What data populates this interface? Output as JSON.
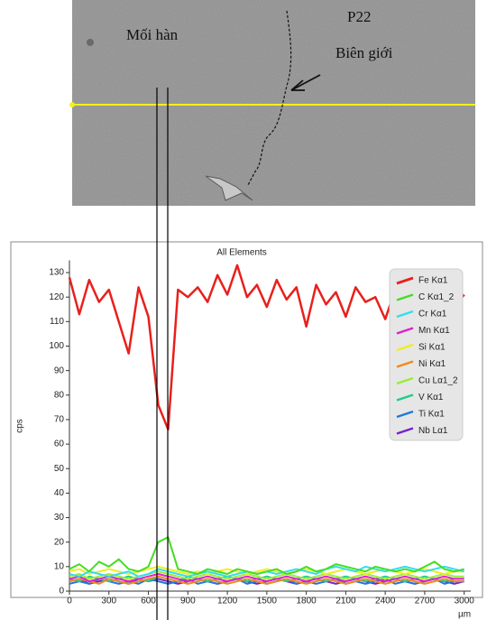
{
  "image_labels": {
    "weld": "Mối hàn",
    "material": "P22",
    "boundary": "Biên giới"
  },
  "chart_data": {
    "type": "line",
    "title": "All Elements",
    "xlabel": "µm",
    "ylabel": "cps",
    "x": [
      0,
      75,
      150,
      225,
      300,
      375,
      450,
      525,
      600,
      675,
      750,
      825,
      900,
      975,
      1050,
      1125,
      1200,
      1275,
      1350,
      1425,
      1500,
      1575,
      1650,
      1725,
      1800,
      1875,
      1950,
      2025,
      2100,
      2175,
      2250,
      2325,
      2400,
      2475,
      2550,
      2625,
      2700,
      2775,
      2850,
      2925,
      3000
    ],
    "xlim": [
      0,
      3050
    ],
    "xticks": [
      0,
      300,
      600,
      900,
      1200,
      1500,
      1800,
      2100,
      2400,
      2700,
      3000
    ],
    "ylim": [
      0,
      135
    ],
    "yticks": [
      0,
      10,
      20,
      30,
      40,
      50,
      60,
      70,
      80,
      90,
      100,
      110,
      120,
      130
    ],
    "legend": "upper right",
    "series": [
      {
        "name": "Fe Kα1",
        "color": "#e8201c",
        "values": [
          128,
          113,
          127,
          118,
          123,
          110,
          97,
          124,
          112,
          76,
          66,
          123,
          120,
          124,
          118,
          129,
          121,
          133,
          120,
          125,
          116,
          127,
          119,
          124,
          108,
          125,
          117,
          122,
          112,
          124,
          118,
          120,
          111,
          123,
          116,
          125,
          117,
          122,
          121,
          116,
          121
        ]
      },
      {
        "name": "C Kα1_2",
        "color": "#44dd22",
        "values": [
          9,
          11,
          8,
          12,
          10,
          13,
          9,
          8,
          10,
          20,
          22,
          9,
          8,
          7,
          9,
          8,
          7,
          9,
          8,
          7,
          8,
          9,
          7,
          8,
          10,
          8,
          9,
          11,
          10,
          9,
          8,
          10,
          9,
          8,
          9,
          8,
          10,
          12,
          9,
          8,
          9
        ]
      },
      {
        "name": "Cr Kα1",
        "color": "#33ddee",
        "values": [
          7,
          6,
          8,
          7,
          6,
          7,
          8,
          6,
          7,
          9,
          8,
          7,
          6,
          7,
          8,
          7,
          6,
          7,
          8,
          7,
          8,
          7,
          8,
          9,
          8,
          7,
          9,
          10,
          9,
          8,
          10,
          9,
          8,
          9,
          10,
          9,
          8,
          9,
          10,
          9,
          8
        ]
      },
      {
        "name": "Mn Kα1",
        "color": "#e020d0",
        "values": [
          5,
          6,
          4,
          5,
          6,
          5,
          4,
          5,
          6,
          7,
          6,
          5,
          4,
          5,
          6,
          5,
          4,
          5,
          6,
          5,
          4,
          5,
          6,
          5,
          4,
          5,
          6,
          5,
          4,
          5,
          6,
          5,
          4,
          5,
          6,
          5,
          4,
          5,
          6,
          5,
          5
        ]
      },
      {
        "name": "Si Kα1",
        "color": "#eeee22",
        "values": [
          8,
          9,
          7,
          8,
          9,
          8,
          7,
          8,
          9,
          10,
          9,
          8,
          7,
          8,
          7,
          8,
          9,
          8,
          7,
          8,
          9,
          8,
          7,
          8,
          9,
          8,
          7,
          8,
          9,
          8,
          7,
          8,
          9,
          8,
          7,
          8,
          9,
          8,
          7,
          8,
          8
        ]
      },
      {
        "name": "Ni Kα1",
        "color": "#f08a1c",
        "values": [
          4,
          5,
          4,
          3,
          5,
          4,
          3,
          4,
          5,
          6,
          5,
          4,
          3,
          4,
          5,
          4,
          3,
          4,
          5,
          4,
          3,
          4,
          5,
          4,
          3,
          4,
          5,
          4,
          3,
          4,
          5,
          4,
          3,
          4,
          5,
          4,
          3,
          4,
          5,
          4,
          4
        ]
      },
      {
        "name": "Cu Lα1_2",
        "color": "#99ee33",
        "values": [
          6,
          7,
          5,
          6,
          7,
          6,
          5,
          6,
          7,
          8,
          7,
          6,
          5,
          6,
          7,
          6,
          5,
          6,
          7,
          6,
          5,
          6,
          7,
          6,
          5,
          6,
          7,
          6,
          5,
          6,
          7,
          6,
          5,
          6,
          7,
          6,
          5,
          6,
          7,
          6,
          6
        ]
      },
      {
        "name": "V Kα1",
        "color": "#22cc88",
        "values": [
          5,
          4,
          6,
          5,
          4,
          5,
          6,
          5,
          4,
          6,
          5,
          4,
          6,
          5,
          4,
          5,
          6,
          5,
          4,
          5,
          6,
          5,
          4,
          5,
          6,
          5,
          4,
          5,
          6,
          5,
          4,
          5,
          6,
          5,
          4,
          5,
          6,
          5,
          4,
          5,
          5
        ]
      },
      {
        "name": "Ti Kα1",
        "color": "#2277dd",
        "values": [
          3,
          4,
          3,
          5,
          4,
          3,
          4,
          3,
          5,
          4,
          3,
          4,
          5,
          3,
          4,
          3,
          4,
          5,
          3,
          4,
          3,
          4,
          5,
          3,
          4,
          3,
          4,
          5,
          3,
          4,
          3,
          4,
          5,
          3,
          4,
          3,
          4,
          5,
          3,
          4,
          4
        ]
      },
      {
        "name": "Nb Lα1",
        "color": "#7722cc",
        "values": [
          4,
          5,
          3,
          4,
          5,
          4,
          3,
          5,
          4,
          5,
          4,
          3,
          4,
          5,
          4,
          3,
          4,
          5,
          4,
          3,
          4,
          5,
          4,
          3,
          4,
          5,
          4,
          3,
          4,
          5,
          4,
          3,
          4,
          5,
          4,
          3,
          4,
          5,
          4,
          3,
          4
        ]
      }
    ]
  }
}
